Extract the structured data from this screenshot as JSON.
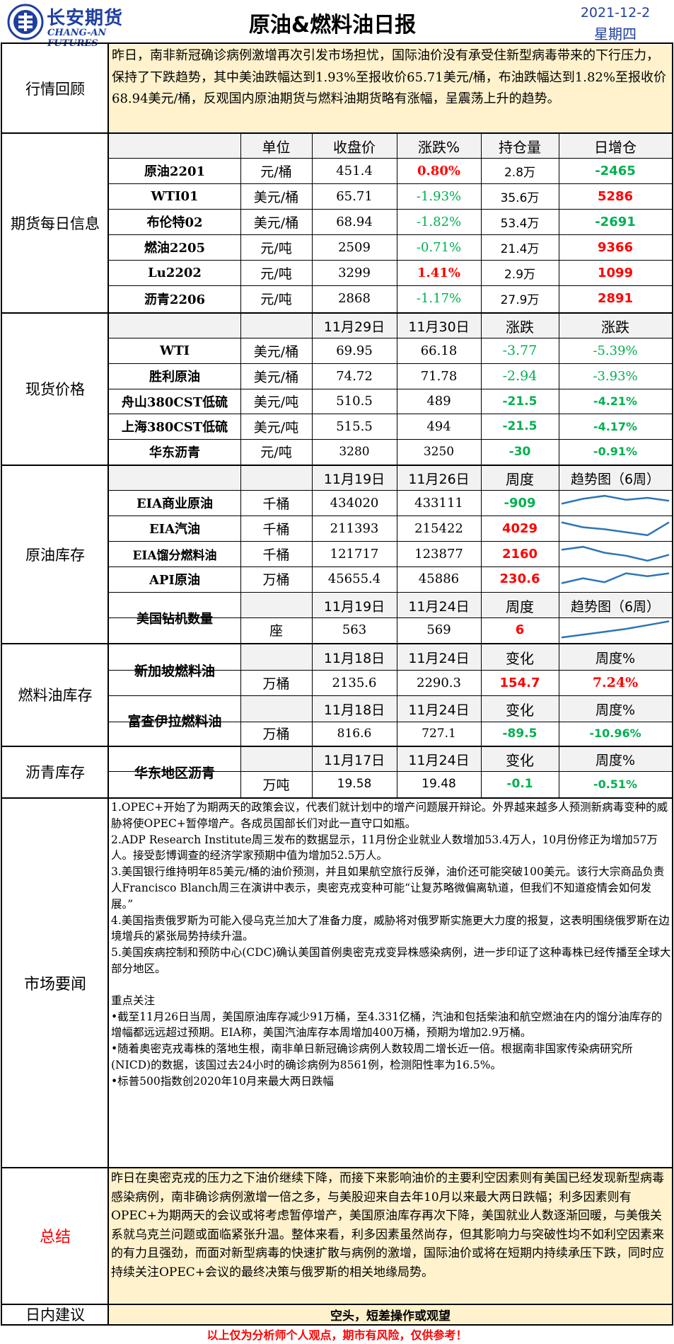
{
  "header": {
    "logo_cn": "长安期货",
    "logo_en": "CHANG-AN FUTURES",
    "title": "原油&燃料油日报",
    "date": "2021-12-2",
    "weekday": "星期四"
  },
  "colors": {
    "border": "#000000",
    "cream": "#fff2cc",
    "gray_header": "#f2f2f2",
    "red": "#ff0000",
    "green": "#00b050",
    "line": "#2e75b6",
    "logo_blue": "#1f3f9f"
  },
  "review": {
    "label": "行情回顾",
    "text": "昨日，南非新冠确诊病例激增再次引发市场担忧，国际油价没有承受住新型病毒带来的下行压力，保持了下跌趋势，其中美油跌幅达到1.93%至报收价65.71美元/桶，布油跌幅达到1.82%至报收价68.94美元/桶，反观国内原油期货与燃料油期货略有涨幅，呈震荡上升的趋势。"
  },
  "futures": {
    "label": "期货每日信息",
    "headers": [
      "单位",
      "收盘价",
      "涨跌%",
      "持仓量",
      "日增仓"
    ],
    "rows": [
      {
        "name": "原油2201",
        "unit": "元/桶",
        "close": "451.4",
        "chg": "0.80%",
        "oi": "2.8万",
        "inc": "-2465"
      },
      {
        "name": "WTI01",
        "unit": "美元/桶",
        "close": "65.71",
        "chg": "-1.93%",
        "oi": "35.6万",
        "inc": "5286"
      },
      {
        "name": "布伦特02",
        "unit": "美元/桶",
        "close": "68.94",
        "chg": "-1.82%",
        "oi": "53.4万",
        "inc": "-2691"
      },
      {
        "name": "燃油2205",
        "unit": "元/吨",
        "close": "2509",
        "chg": "-0.71%",
        "oi": "21.4万",
        "inc": "9366"
      },
      {
        "name": "Lu2202",
        "unit": "元/吨",
        "close": "3299",
        "chg": "1.41%",
        "oi": "2.9万",
        "inc": "1099"
      },
      {
        "name": "沥青2206",
        "unit": "元/吨",
        "close": "2868",
        "chg": "-1.17%",
        "oi": "27.9万",
        "inc": "2891"
      }
    ]
  },
  "spot": {
    "label": "现货价格",
    "headers": [
      "11月29日",
      "11月30日",
      "涨跌",
      "涨跌"
    ],
    "rows": [
      {
        "name": "WTI",
        "unit": "美元/桶",
        "d1": "69.95",
        "d2": "66.18",
        "chg": "-3.77",
        "pct": "-5.39%"
      },
      {
        "name": "胜利原油",
        "unit": "美元/桶",
        "d1": "74.72",
        "d2": "71.78",
        "chg": "-2.94",
        "pct": "-3.93%"
      },
      {
        "name": "舟山380CST低硫",
        "unit": "美元/吨",
        "d1": "510.5",
        "d2": "489",
        "chg": "-21.5",
        "pct": "-4.21%"
      },
      {
        "name": "上海380CST低硫",
        "unit": "美元/吨",
        "d1": "515.5",
        "d2": "494",
        "chg": "-21.5",
        "pct": "-4.17%"
      },
      {
        "name": "华东沥青",
        "unit": "元/吨",
        "d1": "3280",
        "d2": "3250",
        "chg": "-30",
        "pct": "-0.91%"
      }
    ]
  },
  "inventory": {
    "label": "原油库存",
    "headers": [
      "11月19日",
      "11月26日",
      "周度",
      "趋势图（6周）"
    ],
    "rows": [
      {
        "name": "EIA商业原油",
        "unit": "千桶",
        "d1": "434020",
        "d2": "433111",
        "chg": "-909",
        "trend": [
          0.45,
          0.7,
          0.85,
          0.65,
          0.75,
          0.6
        ]
      },
      {
        "name": "EIA汽油",
        "unit": "千桶",
        "d1": "211393",
        "d2": "215422",
        "chg": "4029",
        "trend": [
          0.8,
          0.55,
          0.45,
          0.3,
          0.15,
          0.8
        ]
      },
      {
        "name": "EIA馏分燃料油",
        "unit": "千桶",
        "d1": "121717",
        "d2": "123877",
        "chg": "2160",
        "trend": [
          0.7,
          0.85,
          0.55,
          0.4,
          0.15,
          0.45
        ]
      },
      {
        "name": "API原油",
        "unit": "万桶",
        "d1": "45655.4",
        "d2": "45886",
        "chg": "230.6",
        "trend": [
          0.3,
          0.55,
          0.35,
          0.8,
          0.65,
          0.8
        ]
      }
    ],
    "rig": {
      "name": "美国钻机数量",
      "headers": [
        "11月19日",
        "11月24日",
        "周度",
        "趋势图（6周）"
      ],
      "unit": "座",
      "d1": "563",
      "d2": "569",
      "chg": "6",
      "trend": [
        0.1,
        0.25,
        0.4,
        0.55,
        0.75,
        0.95
      ]
    }
  },
  "fuel": {
    "label": "燃料油库存",
    "sg": {
      "name": "新加坡燃料油",
      "headers": [
        "11月18日",
        "11月24日",
        "变化",
        "周度%"
      ],
      "unit": "万桶",
      "d1": "2135.6",
      "d2": "2290.3",
      "chg": "154.7",
      "pct": "7.24%"
    },
    "fj": {
      "name": "富查伊拉燃料油",
      "headers": [
        "11月18日",
        "11月24日",
        "变化",
        "周度%"
      ],
      "unit": "万桶",
      "d1": "816.6",
      "d2": "727.1",
      "chg": "-89.5",
      "pct": "-10.96%"
    }
  },
  "asphalt": {
    "label": "沥青库存",
    "name": "华东地区沥青",
    "headers": [
      "11月17日",
      "11月24日",
      "变化",
      "周度%"
    ],
    "unit": "万吨",
    "d1": "19.58",
    "d2": "19.48",
    "chg": "-0.1",
    "pct": "-0.51%"
  },
  "news": {
    "label": "市场要闻",
    "items": [
      "1.OPEC+开始了为期两天的政策会议，代表们就计划中的增产问题展开辩论。外界越来越多人预测新病毒变种的威胁将使OPEC+暂停增产。各成员国部长们对此一直守口如瓶。",
      "2.ADP Research Institute周三发布的数据显示，11月份企业就业人数增加53.4万人，10月份修正为增加57万人。接受彭博调查的经济学家预期中值为增加52.5万人。",
      "3.美国银行维持明年85美元/桶的油价预测，并且如果航空旅行反弹，油价还可能突破100美元。该行大宗商品负责人Francisco Blanch周三在演讲中表示，奥密克戎变种可能“让复苏略微偏离轨道，但我们不知道疫情会如何发展。”",
      "4.美国指责俄罗斯为可能入侵乌克兰加大了准备力度，威胁将对俄罗斯实施更大力度的报复，这表明围绕俄罗斯在边境增兵的紧张局势持续升温。",
      "5.美国疾病控制和预防中心(CDC)确认美国首例奥密克戎变异株感染病例，进一步印证了这种毒株已经传播至全球大部分地区。"
    ],
    "focus_title": "重点关注",
    "focus": [
      "•截至11月26日当周，美国原油库存减少91万桶，至4.331亿桶，汽油和包括柴油和航空燃油在内的馏分油库存的增幅都远远超过预期。EIA称，美国汽油库存本周增加400万桶，预期为增加2.9万桶。",
      "•随着奥密克戎毒株的落地生根，南非单日新冠确诊病例人数较周二增长近一倍。根据南非国家传染病研究所(NICD)的数据，该国过去24小时的确诊病例为8561例，检测阳性率为16.5%。",
      "•标普500指数创2020年10月来最大两日跌幅"
    ]
  },
  "summary": {
    "label": "总结",
    "text": "昨日在奥密克戎的压力之下油价继续下降，而接下来影响油价的主要利空因素则有美国已经发现新型病毒感染病例，南非确诊病例激增一倍之多，与美股迎来自去年10月以来最大两日跌幅；利多因素则有OPEC+为期两天的会议或将考虑暂停增产，美国原油库存再次下降，美国就业人数逐渐回暖，与美俄关系就乌克兰问题或面临紧张升温。整体来看，利多因素虽然尚存，但其影响力与突破性均不如利空因素来的有力且强劲，而面对新型病毒的快速扩散与病例的激增，国际油价或将在短期内持续承压下跌，同时应持续关注OPEC+会议的最终决策与俄罗斯的相关地缘局势。"
  },
  "advice": {
    "label": "日内建议",
    "text": "空头，短差操作或观望"
  },
  "footer": {
    "disclaimer": "以上仅为分析师个人观点，期市有风险，仅供参考！"
  }
}
